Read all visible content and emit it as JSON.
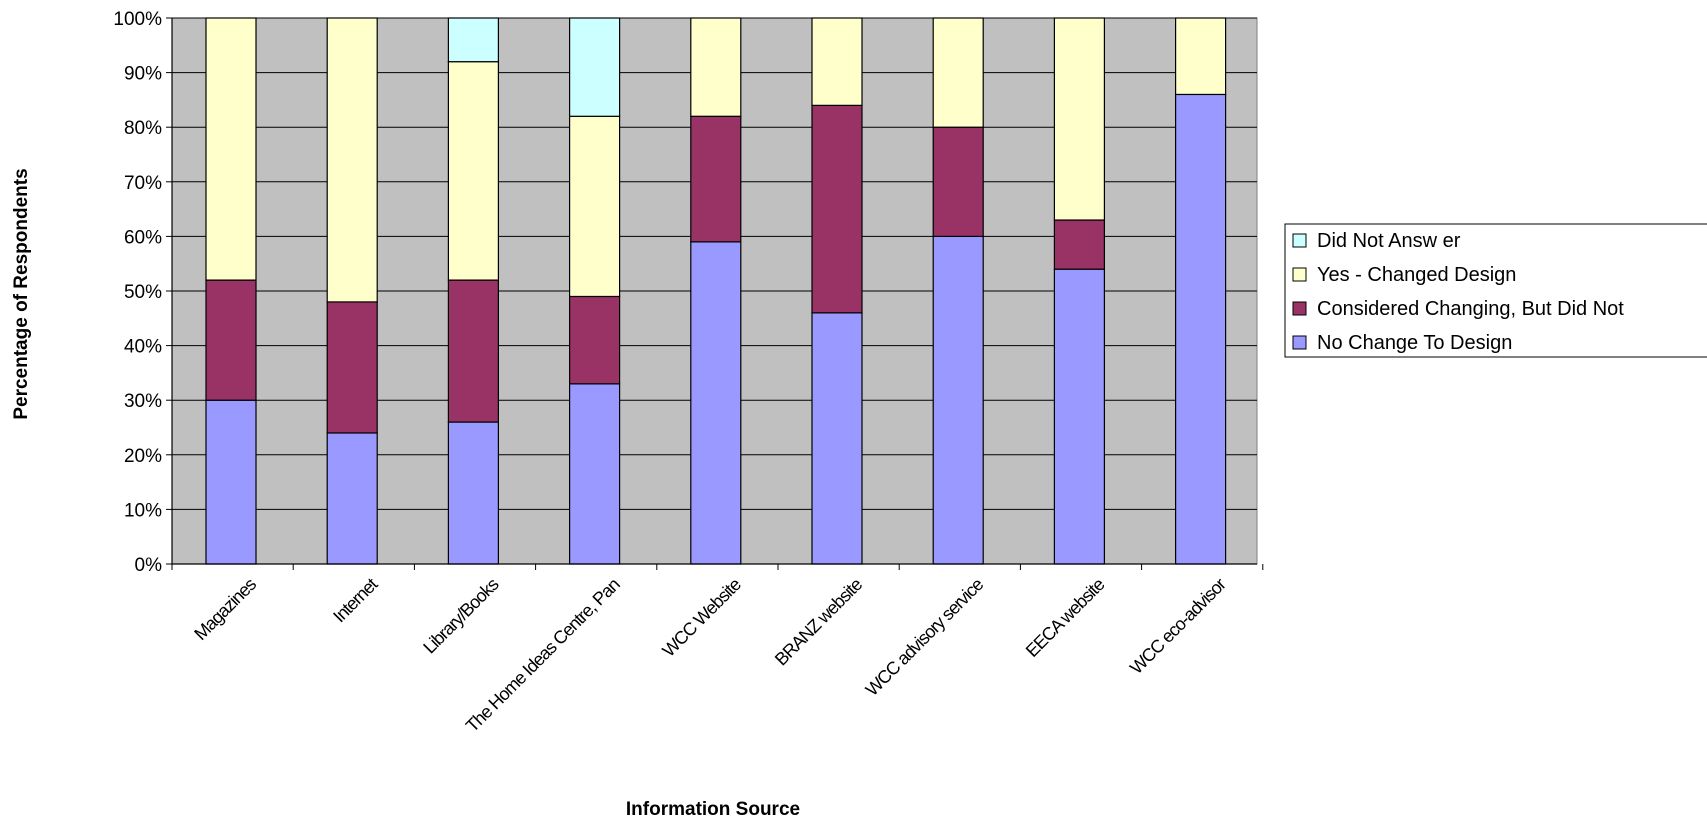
{
  "chart_data": {
    "type": "bar",
    "stacked": true,
    "percent_stacked": true,
    "title": "",
    "xlabel": "Information Source",
    "ylabel": "Percentage of Respondents",
    "ylim": [
      0,
      100
    ],
    "y_tick_labels": [
      "0%",
      "10%",
      "20%",
      "30%",
      "40%",
      "50%",
      "60%",
      "70%",
      "80%",
      "90%",
      "100%"
    ],
    "grid": true,
    "legend_position": "right",
    "categories": [
      "Magazines",
      "Internet",
      "Library/Books",
      "The Home Ideas Centre, Pan",
      "WCC Website",
      "BRANZ website",
      "WCC advisory service",
      "EECA website",
      "WCC eco-advisor"
    ],
    "series": [
      {
        "name": "No Change To Design",
        "color": "#9999ff",
        "values": [
          30,
          24,
          26,
          33,
          59,
          46,
          60,
          54,
          86
        ]
      },
      {
        "name": "Considered Changing, But Did Not",
        "color": "#993366",
        "values": [
          22,
          24,
          26,
          16,
          23,
          38,
          20,
          9,
          0
        ]
      },
      {
        "name": "Yes - Changed Design",
        "color": "#ffffcc",
        "values": [
          48,
          52,
          40,
          33,
          18,
          16,
          20,
          37,
          14
        ]
      },
      {
        "name": "Did Not Answ er",
        "color": "#ccffff",
        "values": [
          0,
          0,
          8,
          18,
          0,
          0,
          0,
          0,
          0
        ]
      }
    ],
    "legend_order": [
      "Did Not Answ er",
      "Yes - Changed Design",
      "Considered Changing, But Did Not",
      "No Change To Design"
    ],
    "plot_background": "#c0c0c0"
  }
}
